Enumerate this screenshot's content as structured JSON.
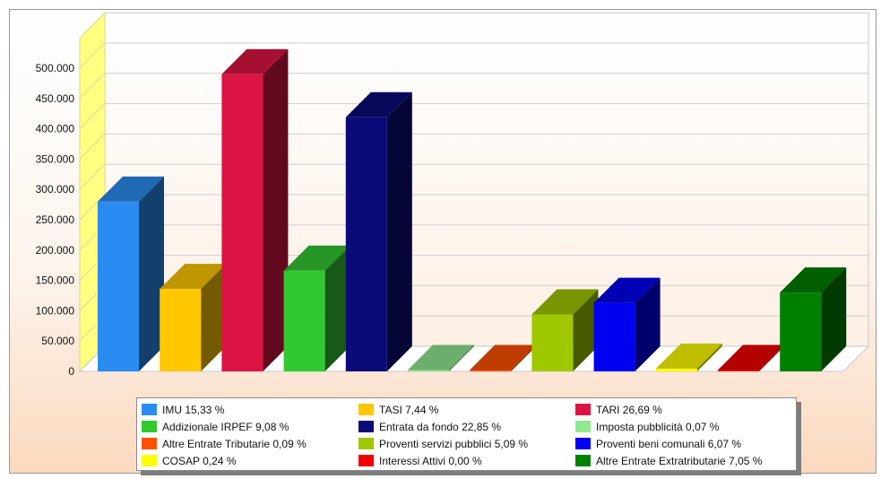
{
  "chart_data": {
    "type": "bar",
    "title": "",
    "xlabel": "",
    "ylabel": "",
    "ylim": [
      0,
      550000
    ],
    "yticks": [
      "0",
      "50.000",
      "100.000",
      "150.000",
      "200.000",
      "250.000",
      "300.000",
      "350.000",
      "400.000",
      "450.000",
      "500.000"
    ],
    "grid": true,
    "legend_position": "bottom",
    "categories": [
      "IMU 15,33 %",
      "TASI 7,44 %",
      "TARI 26,69 %",
      "Addizionale IRPEF 9,08 %",
      "Entrata da fondo 22,85 %",
      "Imposta pubblicità 0,07 %",
      "Altre Entrate Tributarie 0,09 %",
      "Proventi servizi pubblici 5,09 %",
      "Proventi beni comunali 6,07 %",
      "COSAP 0,24 %",
      "Interessi Attivi 0,00 %",
      "Altre Entrate Extratributarie 7,05 %"
    ],
    "values": [
      280000,
      136000,
      490000,
      166000,
      419000,
      1200,
      1600,
      94000,
      113000,
      4500,
      0,
      130000
    ],
    "colors": [
      "#2a8cf0",
      "#ffc800",
      "#dc1443",
      "#32c832",
      "#0a0a78",
      "#90e890",
      "#ff5000",
      "#a0c800",
      "#0000f0",
      "#ffff00",
      "#f00000",
      "#008000"
    ],
    "legend_order": [
      0,
      1,
      2,
      3,
      4,
      5,
      6,
      7,
      8,
      9,
      10,
      11
    ]
  }
}
